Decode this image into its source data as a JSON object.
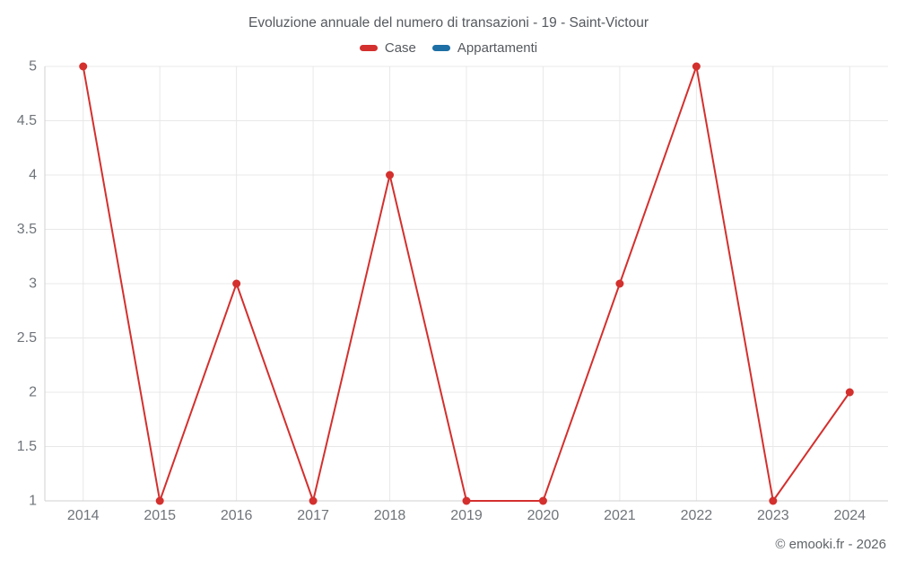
{
  "page": {
    "attribution": "© emooki.fr - 2026"
  },
  "chart_data": {
    "type": "line",
    "title": "Evoluzione annuale del numero di transazioni - 19 - Saint-Victour",
    "categories": [
      "2014",
      "2015",
      "2016",
      "2017",
      "2018",
      "2019",
      "2020",
      "2021",
      "2022",
      "2023",
      "2024"
    ],
    "series": [
      {
        "name": "Case",
        "color": "#d3302e",
        "values": [
          5,
          1,
          3,
          1,
          4,
          1,
          1,
          3,
          5,
          1,
          2
        ]
      },
      {
        "name": "Appartamenti",
        "color": "#1d6fa5",
        "values": []
      }
    ],
    "xlabel": "",
    "ylabel": "",
    "ylim": [
      1,
      5
    ],
    "ytick_step": 0.5,
    "grid": true,
    "legend_position": "top",
    "marker_radius": 4.5,
    "line_width": 2,
    "colors": {
      "grid": "#e8e8e8",
      "axis": "#d0d0d0",
      "tick_label": "#6f7479",
      "title": "#55595e"
    }
  }
}
